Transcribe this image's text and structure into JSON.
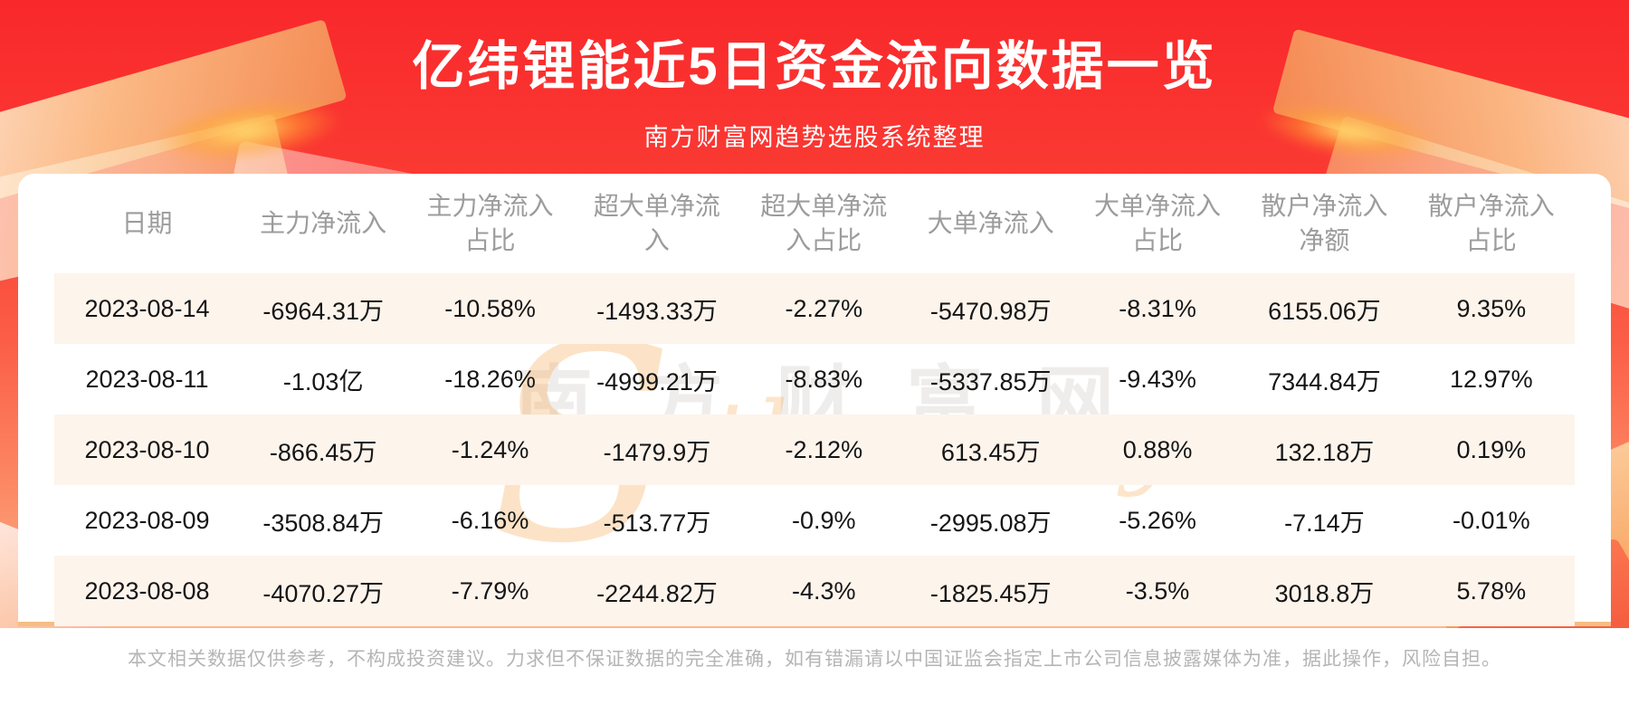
{
  "header": {
    "title": "亿纬锂能近5日资金流向数据一览",
    "subtitle": "南方财富网趋势选股系统整理"
  },
  "chart_data": {
    "type": "table",
    "title": "亿纬锂能近5日资金流向数据一览",
    "columns": [
      "日期",
      "主力净流入",
      "主力净流入占比",
      "超大单净流入",
      "超大单净流入占比",
      "大单净流入",
      "大单净流入占比",
      "散户净流入净额",
      "散户净流入占比"
    ],
    "rows": [
      [
        "2023-08-14",
        "-6964.31万",
        "-10.58%",
        "-1493.33万",
        "-2.27%",
        "-5470.98万",
        "-8.31%",
        "6155.06万",
        "9.35%"
      ],
      [
        "2023-08-11",
        "-1.03亿",
        "-18.26%",
        "-4999.21万",
        "-8.83%",
        "-5337.85万",
        "-9.43%",
        "7344.84万",
        "12.97%"
      ],
      [
        "2023-08-10",
        "-866.45万",
        "-1.24%",
        "-1479.9万",
        "-2.12%",
        "613.45万",
        "0.88%",
        "132.18万",
        "0.19%"
      ],
      [
        "2023-08-09",
        "-3508.84万",
        "-6.16%",
        "-513.77万",
        "-0.9%",
        "-2995.08万",
        "-5.26%",
        "-7.14万",
        "-0.01%"
      ],
      [
        "2023-08-08",
        "-4070.27万",
        "-7.79%",
        "-2244.82万",
        "-4.3%",
        "-1825.45万",
        "-3.5%",
        "3018.8万",
        "5.78%"
      ]
    ]
  },
  "watermark": {
    "cn": "南方财富网",
    "en": "Southmoney.com"
  },
  "footer": {
    "disclaimer": "本文相关数据仅供参考，不构成投资建议。力求但不保证数据的完全准确，如有错漏请以中国证监会指定上市公司信息披露媒体为准，据此操作，风险自担。"
  },
  "colors": {
    "banner_red_top": "#f9282b",
    "banner_orange_bottom": "#fcb68d",
    "row_alt_background": "#fdf4ec",
    "table_bottom_border": "#f6bd84",
    "header_text": "#9c9c9c",
    "cell_text": "#151515",
    "title_text": "#ffffff",
    "disclaimer_text": "#b5b5b5",
    "watermark_orange": "#f6a246"
  }
}
